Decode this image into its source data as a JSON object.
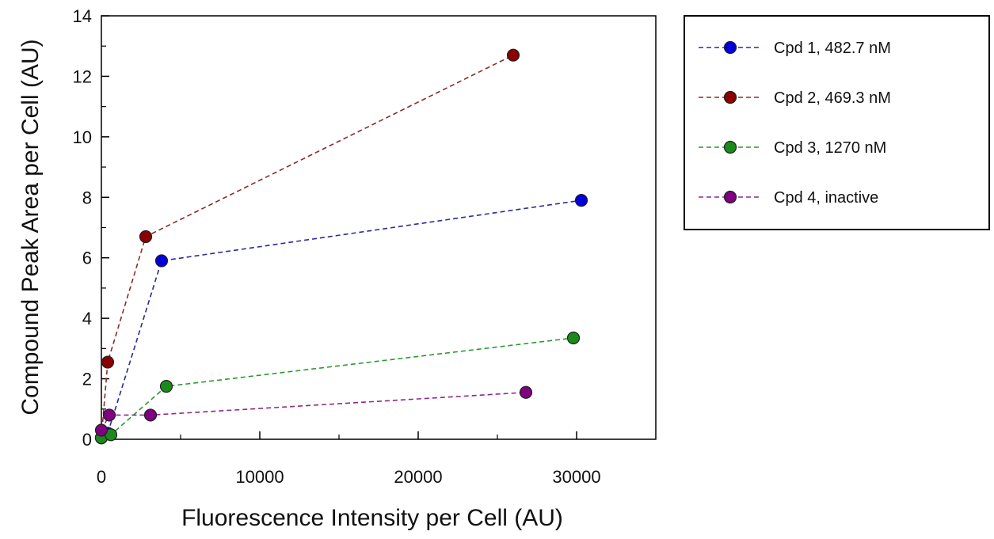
{
  "chart_data": {
    "type": "line",
    "title": "",
    "xlabel": "Fluorescence Intensity per Cell (AU)",
    "ylabel": "Compound Peak Area per Cell (AU)",
    "xlim": [
      0,
      35000
    ],
    "ylim": [
      0,
      14
    ],
    "x_ticks": [
      0,
      10000,
      20000,
      30000
    ],
    "y_ticks": [
      0,
      2,
      4,
      6,
      8,
      10,
      12,
      14
    ],
    "grid": false,
    "legend_position": "right",
    "series": [
      {
        "name": "Cpd 1, 482.7 nM",
        "color": "#0000dd",
        "line_color": "#2a2a9a",
        "points": [
          [
            0,
            0.05
          ],
          [
            400,
            0.2
          ],
          [
            3800,
            5.9
          ],
          [
            30300,
            7.9
          ]
        ]
      },
      {
        "name": "Cpd 2, 469.3 nM",
        "color": "#8b0000",
        "line_color": "#8b2a2a",
        "points": [
          [
            0,
            0.05
          ],
          [
            400,
            2.55
          ],
          [
            2800,
            6.7
          ],
          [
            26000,
            12.7
          ]
        ]
      },
      {
        "name": "Cpd 3, 1270 nM",
        "color": "#1a8a1a",
        "line_color": "#2a9a2a",
        "points": [
          [
            0,
            0.05
          ],
          [
            600,
            0.15
          ],
          [
            4100,
            1.75
          ],
          [
            29800,
            3.35
          ]
        ]
      },
      {
        "name": "Cpd 4, inactive",
        "color": "#800080",
        "line_color": "#8a2a8a",
        "points": [
          [
            0,
            0.3
          ],
          [
            500,
            0.8
          ],
          [
            3100,
            0.8
          ],
          [
            26800,
            1.55
          ]
        ]
      }
    ]
  }
}
